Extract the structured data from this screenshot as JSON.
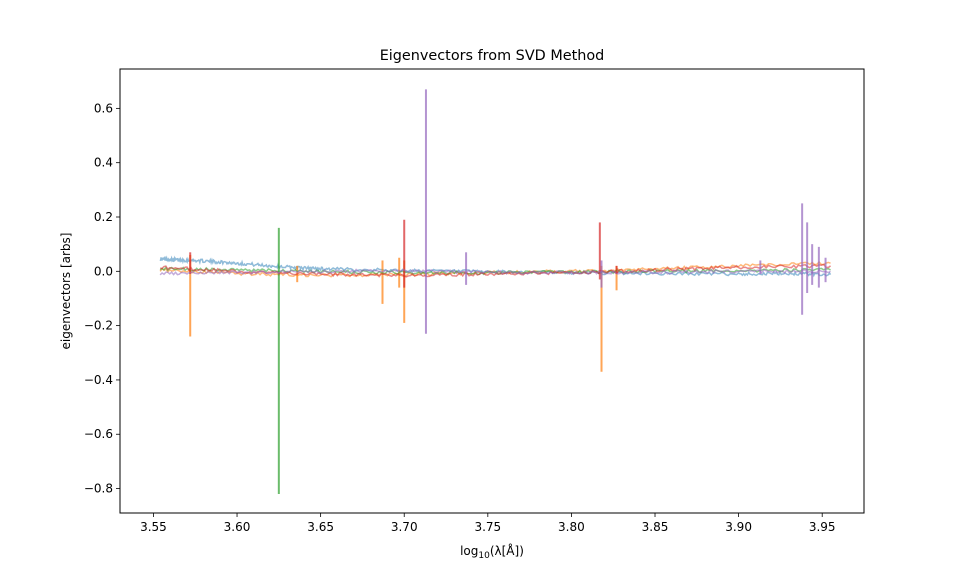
{
  "chart_data": {
    "type": "line",
    "title": "Eigenvectors from SVD Method",
    "xlabel_prefix": "log",
    "xlabel_sub": "10",
    "xlabel_suffix": "(λ[Å])",
    "ylabel": "eigenvectors [arbs]",
    "xlim": [
      3.53,
      3.975
    ],
    "ylim": [
      -0.89,
      0.745
    ],
    "x_ticks": [
      3.55,
      3.6,
      3.65,
      3.7,
      3.75,
      3.8,
      3.85,
      3.9,
      3.95
    ],
    "x_tick_labels": [
      "3.55",
      "3.60",
      "3.65",
      "3.70",
      "3.75",
      "3.80",
      "3.85",
      "3.90",
      "3.95"
    ],
    "y_ticks": [
      -0.8,
      -0.6,
      -0.4,
      -0.2,
      0.0,
      0.2,
      0.4,
      0.6
    ],
    "y_tick_labels": [
      "−0.8",
      "−0.6",
      "−0.4",
      "−0.2",
      "0.0",
      "0.2",
      "0.4",
      "0.6"
    ],
    "grid": false,
    "series": [
      {
        "color": "#1f77b4",
        "opacity": 0.5,
        "points": [
          [
            3.554,
            0.045
          ],
          [
            3.565,
            0.042
          ],
          [
            3.58,
            0.038
          ],
          [
            3.6,
            0.03
          ],
          [
            3.62,
            0.02
          ],
          [
            3.64,
            0.012
          ],
          [
            3.66,
            0.008
          ],
          [
            3.7,
            0.003
          ],
          [
            3.75,
            -0.002
          ],
          [
            3.8,
            -0.005
          ],
          [
            3.85,
            -0.008
          ],
          [
            3.9,
            -0.01
          ],
          [
            3.93,
            -0.008
          ],
          [
            3.955,
            -0.012
          ]
        ],
        "spikes": []
      },
      {
        "color": "#ff7f0e",
        "opacity": 0.55,
        "points": [
          [
            3.554,
            0.005
          ],
          [
            3.6,
            -0.008
          ],
          [
            3.65,
            -0.015
          ],
          [
            3.7,
            -0.012
          ],
          [
            3.75,
            -0.005
          ],
          [
            3.8,
            0.0
          ],
          [
            3.85,
            0.008
          ],
          [
            3.9,
            0.02
          ],
          [
            3.955,
            0.03
          ]
        ],
        "spikes": [
          [
            3.572,
            -0.24,
            0.06
          ],
          [
            3.636,
            -0.04,
            0.02
          ],
          [
            3.687,
            -0.12,
            0.04
          ],
          [
            3.697,
            -0.06,
            0.05
          ],
          [
            3.7,
            -0.19,
            0.04
          ],
          [
            3.818,
            -0.37,
            0.02
          ],
          [
            3.827,
            -0.07,
            0.02
          ]
        ]
      },
      {
        "color": "#2ca02c",
        "opacity": 0.55,
        "points": [
          [
            3.554,
            0.01
          ],
          [
            3.6,
            0.005
          ],
          [
            3.65,
            0.0
          ],
          [
            3.7,
            -0.005
          ],
          [
            3.75,
            -0.005
          ],
          [
            3.8,
            -0.003
          ],
          [
            3.85,
            0.0
          ],
          [
            3.9,
            0.003
          ],
          [
            3.955,
            0.005
          ]
        ],
        "spikes": [
          [
            3.625,
            -0.82,
            0.16
          ]
        ]
      },
      {
        "color": "#d62728",
        "opacity": 0.55,
        "points": [
          [
            3.554,
            0.015
          ],
          [
            3.6,
            0.0
          ],
          [
            3.65,
            -0.01
          ],
          [
            3.7,
            -0.015
          ],
          [
            3.75,
            -0.01
          ],
          [
            3.8,
            -0.005
          ],
          [
            3.85,
            0.005
          ],
          [
            3.9,
            0.015
          ],
          [
            3.955,
            0.02
          ]
        ],
        "spikes": [
          [
            3.572,
            -0.01,
            0.07
          ],
          [
            3.7,
            -0.06,
            0.19
          ],
          [
            3.817,
            -0.03,
            0.18
          ],
          [
            3.827,
            -0.01,
            0.02
          ]
        ]
      },
      {
        "color": "#9467bd",
        "opacity": 0.55,
        "points": [
          [
            3.554,
            -0.01
          ],
          [
            3.6,
            -0.005
          ],
          [
            3.65,
            0.0
          ],
          [
            3.7,
            0.002
          ],
          [
            3.75,
            -0.004
          ],
          [
            3.8,
            -0.005
          ],
          [
            3.85,
            -0.004
          ],
          [
            3.9,
            0.0
          ],
          [
            3.955,
            0.0
          ]
        ],
        "spikes": [
          [
            3.713,
            -0.23,
            0.67
          ],
          [
            3.737,
            -0.05,
            0.07
          ],
          [
            3.818,
            -0.06,
            0.04
          ],
          [
            3.938,
            -0.16,
            0.25
          ],
          [
            3.941,
            -0.08,
            0.18
          ],
          [
            3.944,
            -0.05,
            0.1
          ],
          [
            3.948,
            -0.06,
            0.09
          ],
          [
            3.952,
            -0.04,
            0.05
          ],
          [
            3.913,
            -0.01,
            0.04
          ]
        ]
      }
    ]
  }
}
